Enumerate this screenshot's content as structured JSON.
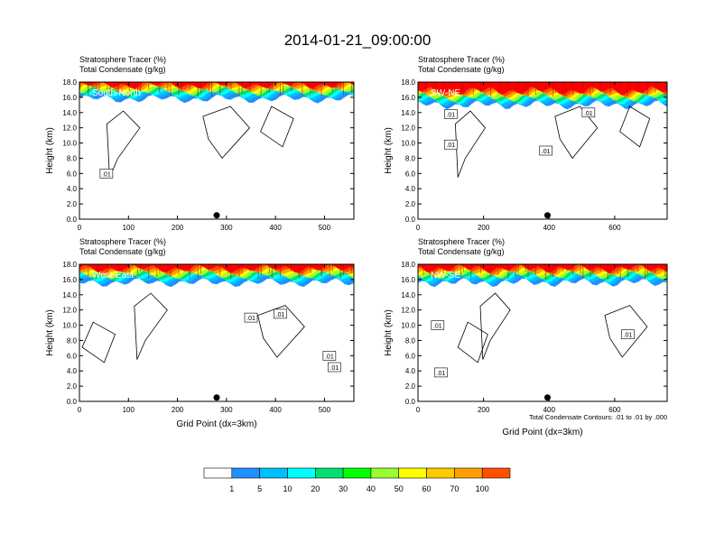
{
  "chart_data": {
    "type": "heatmap",
    "title": "2014-01-21_09:00:00",
    "panels": [
      {
        "id": "south-north",
        "label": "South-North",
        "title_lines": [
          "Stratosphere Tracer   (%)",
          "Total Condensate   (g/kg)"
        ],
        "ylabel": "Height (km)",
        "xlabel": "",
        "ylim": [
          0,
          18
        ],
        "xlim": [
          0,
          560
        ],
        "x_ticks": [
          0,
          100,
          200,
          300,
          400,
          500
        ],
        "y_tick_labels": [
          "0.0",
          "2.0",
          "4.0",
          "6.0",
          "8.0",
          "10.0",
          "12.0",
          "14.0",
          "16.0",
          "18.0"
        ],
        "contour_labels": [
          {
            "text": ".01",
            "x": 55,
            "y": 6.0
          }
        ],
        "marker_x": 280,
        "tracer_base_km": 15.8
      },
      {
        "id": "sw-ne",
        "label": "SW-NE",
        "title_lines": [
          "Stratosphere Tracer   (%)",
          "Total Condensate   (g/kg)"
        ],
        "ylabel": "Height (km)",
        "xlabel": "",
        "ylim": [
          0,
          18
        ],
        "xlim": [
          0,
          760
        ],
        "x_ticks": [
          0,
          200,
          400,
          600
        ],
        "y_tick_labels": [
          "0.0",
          "2.0",
          "4.0",
          "6.0",
          "8.0",
          "10.0",
          "12.0",
          "14.0",
          "16.0",
          "18.0"
        ],
        "contour_labels": [
          {
            "text": ".01",
            "x": 100,
            "y": 13.8
          },
          {
            "text": ".01",
            "x": 100,
            "y": 9.8
          },
          {
            "text": ".01",
            "x": 390,
            "y": 9.0
          },
          {
            "text": ".01",
            "x": 520,
            "y": 14.0
          }
        ],
        "marker_x": 395,
        "tracer_base_km": 15.0
      },
      {
        "id": "west-east",
        "label": "West-East",
        "title_lines": [
          "Stratosphere Tracer   (%)",
          "Total Condensate   (g/kg)"
        ],
        "ylabel": "Height (km)",
        "xlabel": "Grid Point (dx=3km)",
        "ylim": [
          0,
          18
        ],
        "xlim": [
          0,
          560
        ],
        "x_ticks": [
          0,
          100,
          200,
          300,
          400,
          500
        ],
        "y_tick_labels": [
          "0.0",
          "2.0",
          "4.0",
          "6.0",
          "8.0",
          "10.0",
          "12.0",
          "14.0",
          "16.0",
          "18.0"
        ],
        "contour_labels": [
          {
            "text": ".01",
            "x": 350,
            "y": 11.0
          },
          {
            "text": ".01",
            "x": 410,
            "y": 11.5
          },
          {
            "text": ".01",
            "x": 510,
            "y": 6.0
          },
          {
            "text": ".01",
            "x": 520,
            "y": 4.5
          }
        ],
        "marker_x": 280,
        "tracer_base_km": 15.6
      },
      {
        "id": "nw-se",
        "label": "NW-SE",
        "title_lines": [
          "Stratosphere Tracer   (%)",
          "Total Condensate   (g/kg)"
        ],
        "ylabel": "Height (km)",
        "xlabel": "Grid Point (dx=3km)",
        "ylim": [
          0,
          18
        ],
        "xlim": [
          0,
          760
        ],
        "x_ticks": [
          0,
          200,
          400,
          600
        ],
        "y_tick_labels": [
          "0.0",
          "2.0",
          "4.0",
          "6.0",
          "8.0",
          "10.0",
          "12.0",
          "14.0",
          "16.0",
          "18.0"
        ],
        "contour_labels": [
          {
            "text": ".01",
            "x": 60,
            "y": 10.0
          },
          {
            "text": ".01",
            "x": 70,
            "y": 3.8
          },
          {
            "text": ".01",
            "x": 640,
            "y": 8.8
          }
        ],
        "marker_x": 395,
        "tracer_base_km": 15.6,
        "footnote": "Total Condensate Contours: .01 to .01 by .000"
      }
    ],
    "colorbar": {
      "levels": [
        "1",
        "5",
        "10",
        "20",
        "30",
        "40",
        "50",
        "60",
        "70",
        "100"
      ],
      "colors": [
        "#ffffff",
        "#1e90ff",
        "#00bfff",
        "#00ffff",
        "#00e070",
        "#00ff00",
        "#9aff32",
        "#ffff00",
        "#ffcc00",
        "#ffa000",
        "#ff5000",
        "#ff0000"
      ]
    }
  }
}
